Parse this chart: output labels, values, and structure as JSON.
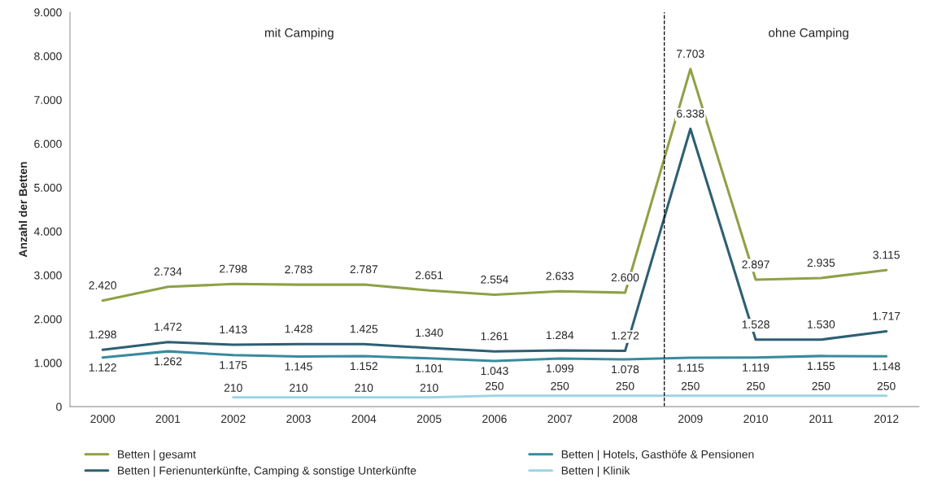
{
  "chart_data": {
    "type": "line",
    "ylabel": "Anzahl der Betten",
    "x": [
      2000,
      2001,
      2002,
      2003,
      2004,
      2005,
      2006,
      2007,
      2008,
      2009,
      2010,
      2011,
      2012
    ],
    "xlim": [
      1999.5,
      2012.5
    ],
    "xticks": [
      2000,
      2001,
      2002,
      2003,
      2004,
      2005,
      2006,
      2007,
      2008,
      2009,
      2010,
      2011,
      2012
    ],
    "ylim": [
      0,
      9000
    ],
    "yticks": [
      {
        "value": 0,
        "label": "0"
      },
      {
        "value": 1000,
        "label": "1.000"
      },
      {
        "value": 2000,
        "label": "2.000"
      },
      {
        "value": 3000,
        "label": "3.000"
      },
      {
        "value": 4000,
        "label": "4.000"
      },
      {
        "value": 5000,
        "label": "5.000"
      },
      {
        "value": 6000,
        "label": "6.000"
      },
      {
        "value": 7000,
        "label": "7.000"
      },
      {
        "value": 8000,
        "label": "8.000"
      },
      {
        "value": 9000,
        "label": "9.000"
      }
    ],
    "series": [
      {
        "name": "Betten | gesamt",
        "color": "#8ea147",
        "values": [
          2420,
          2734,
          2798,
          2783,
          2787,
          2651,
          2554,
          2633,
          2600,
          7703,
          2897,
          2935,
          3115
        ],
        "value_labels": [
          "2.420",
          "2.734",
          "2.798",
          "2.783",
          "2.787",
          "2.651",
          "2.554",
          "2.633",
          "2.600",
          "7.703",
          "2.897",
          "2.935",
          "3.115"
        ]
      },
      {
        "name": "Betten | Hotels, Gasthöfe & Pensionen",
        "color": "#3a8a9e",
        "values": [
          1122,
          1262,
          1175,
          1145,
          1152,
          1101,
          1043,
          1099,
          1078,
          1115,
          1119,
          1155,
          1148
        ],
        "value_labels": [
          "1.122",
          "1.262",
          "1.175",
          "1.145",
          "1.152",
          "1.101",
          "1.043",
          "1.099",
          "1.078",
          "1.115",
          "1.119",
          "1.155",
          "1.148"
        ]
      },
      {
        "name": "Betten | Ferienunterkünfte, Camping & sonstige Unterkünfte",
        "color": "#2d5f73",
        "values": [
          1298,
          1472,
          1413,
          1428,
          1425,
          1340,
          1261,
          1284,
          1272,
          6338,
          1528,
          1530,
          1717
        ],
        "value_labels": [
          "1.298",
          "1.472",
          "1.413",
          "1.428",
          "1.425",
          "1.340",
          "1.261",
          "1.284",
          "1.272",
          "6.338",
          "1.528",
          "1.530",
          "1.717"
        ]
      },
      {
        "name": "Betten | Klinik",
        "color": "#9fd4e4",
        "values": [
          null,
          null,
          210,
          210,
          210,
          210,
          250,
          250,
          250,
          250,
          250,
          250,
          250
        ],
        "value_labels": [
          null,
          null,
          "210",
          "210",
          "210",
          "210",
          "250",
          "250",
          "250",
          "250",
          "250",
          "250",
          "250"
        ]
      }
    ],
    "ref_lines": [
      {
        "axis": "x",
        "value": 2008.6,
        "color": "#000000",
        "line_style": "dashed"
      }
    ],
    "annotations": [
      "mit Camping",
      "ohne Camping"
    ],
    "legend": "bottom",
    "grid": false,
    "marker": "none",
    "line_style": "solid"
  }
}
